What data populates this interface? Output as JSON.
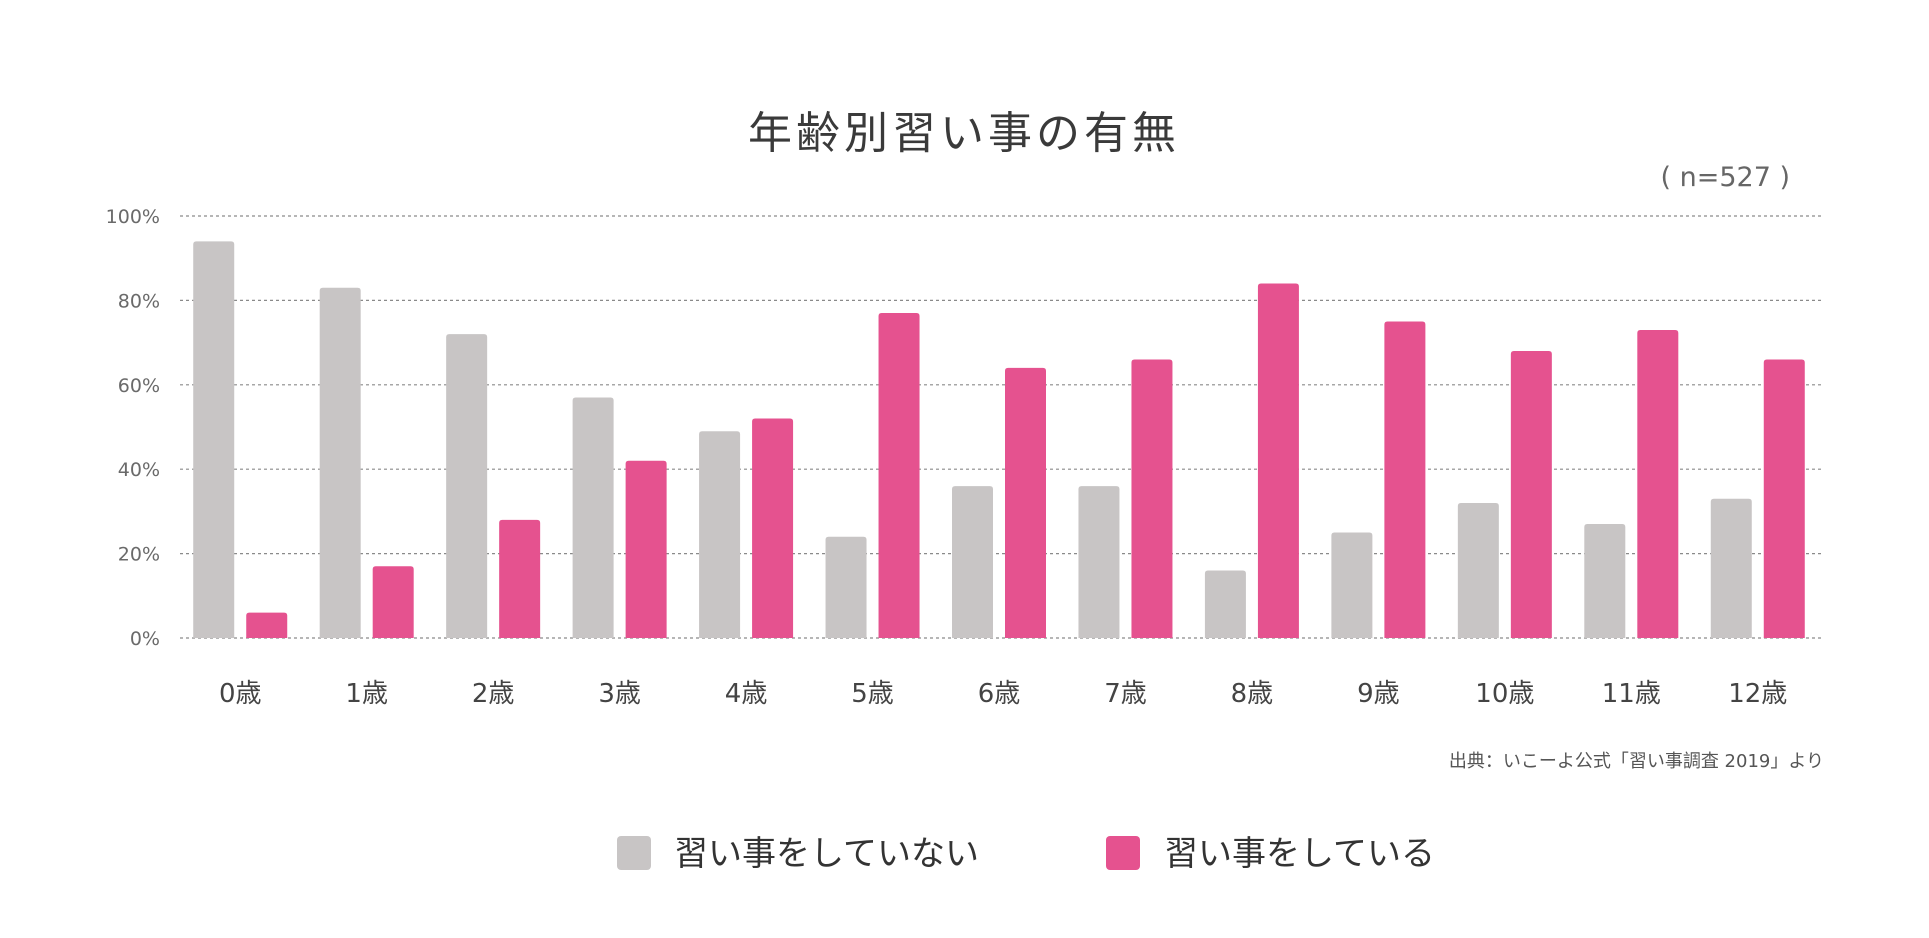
{
  "chart_data": {
    "type": "bar",
    "title": "年齢別習い事の有無",
    "subtitle": "( n=527 )",
    "categories": [
      "0歳",
      "1歳",
      "2歳",
      "3歳",
      "4歳",
      "5歳",
      "6歳",
      "7歳",
      "8歳",
      "9歳",
      "10歳",
      "11歳",
      "12歳"
    ],
    "series": [
      {
        "name": "習い事をしていない",
        "color": "#c8c5c5",
        "values": [
          94,
          83,
          72,
          57,
          49,
          24,
          36,
          36,
          16,
          25,
          32,
          27,
          33
        ]
      },
      {
        "name": "習い事をしている",
        "color": "#e5528f",
        "values": [
          6,
          17,
          28,
          42,
          52,
          77,
          64,
          66,
          84,
          75,
          68,
          73,
          66
        ]
      }
    ],
    "ylim": [
      0,
      100
    ],
    "yticks": [
      "0%",
      "20%",
      "40%",
      "60%",
      "80%",
      "100%"
    ],
    "grid": true,
    "legend_position": "bottom",
    "source": "出典：いこーよ公式「習い事調査 2019」より"
  }
}
